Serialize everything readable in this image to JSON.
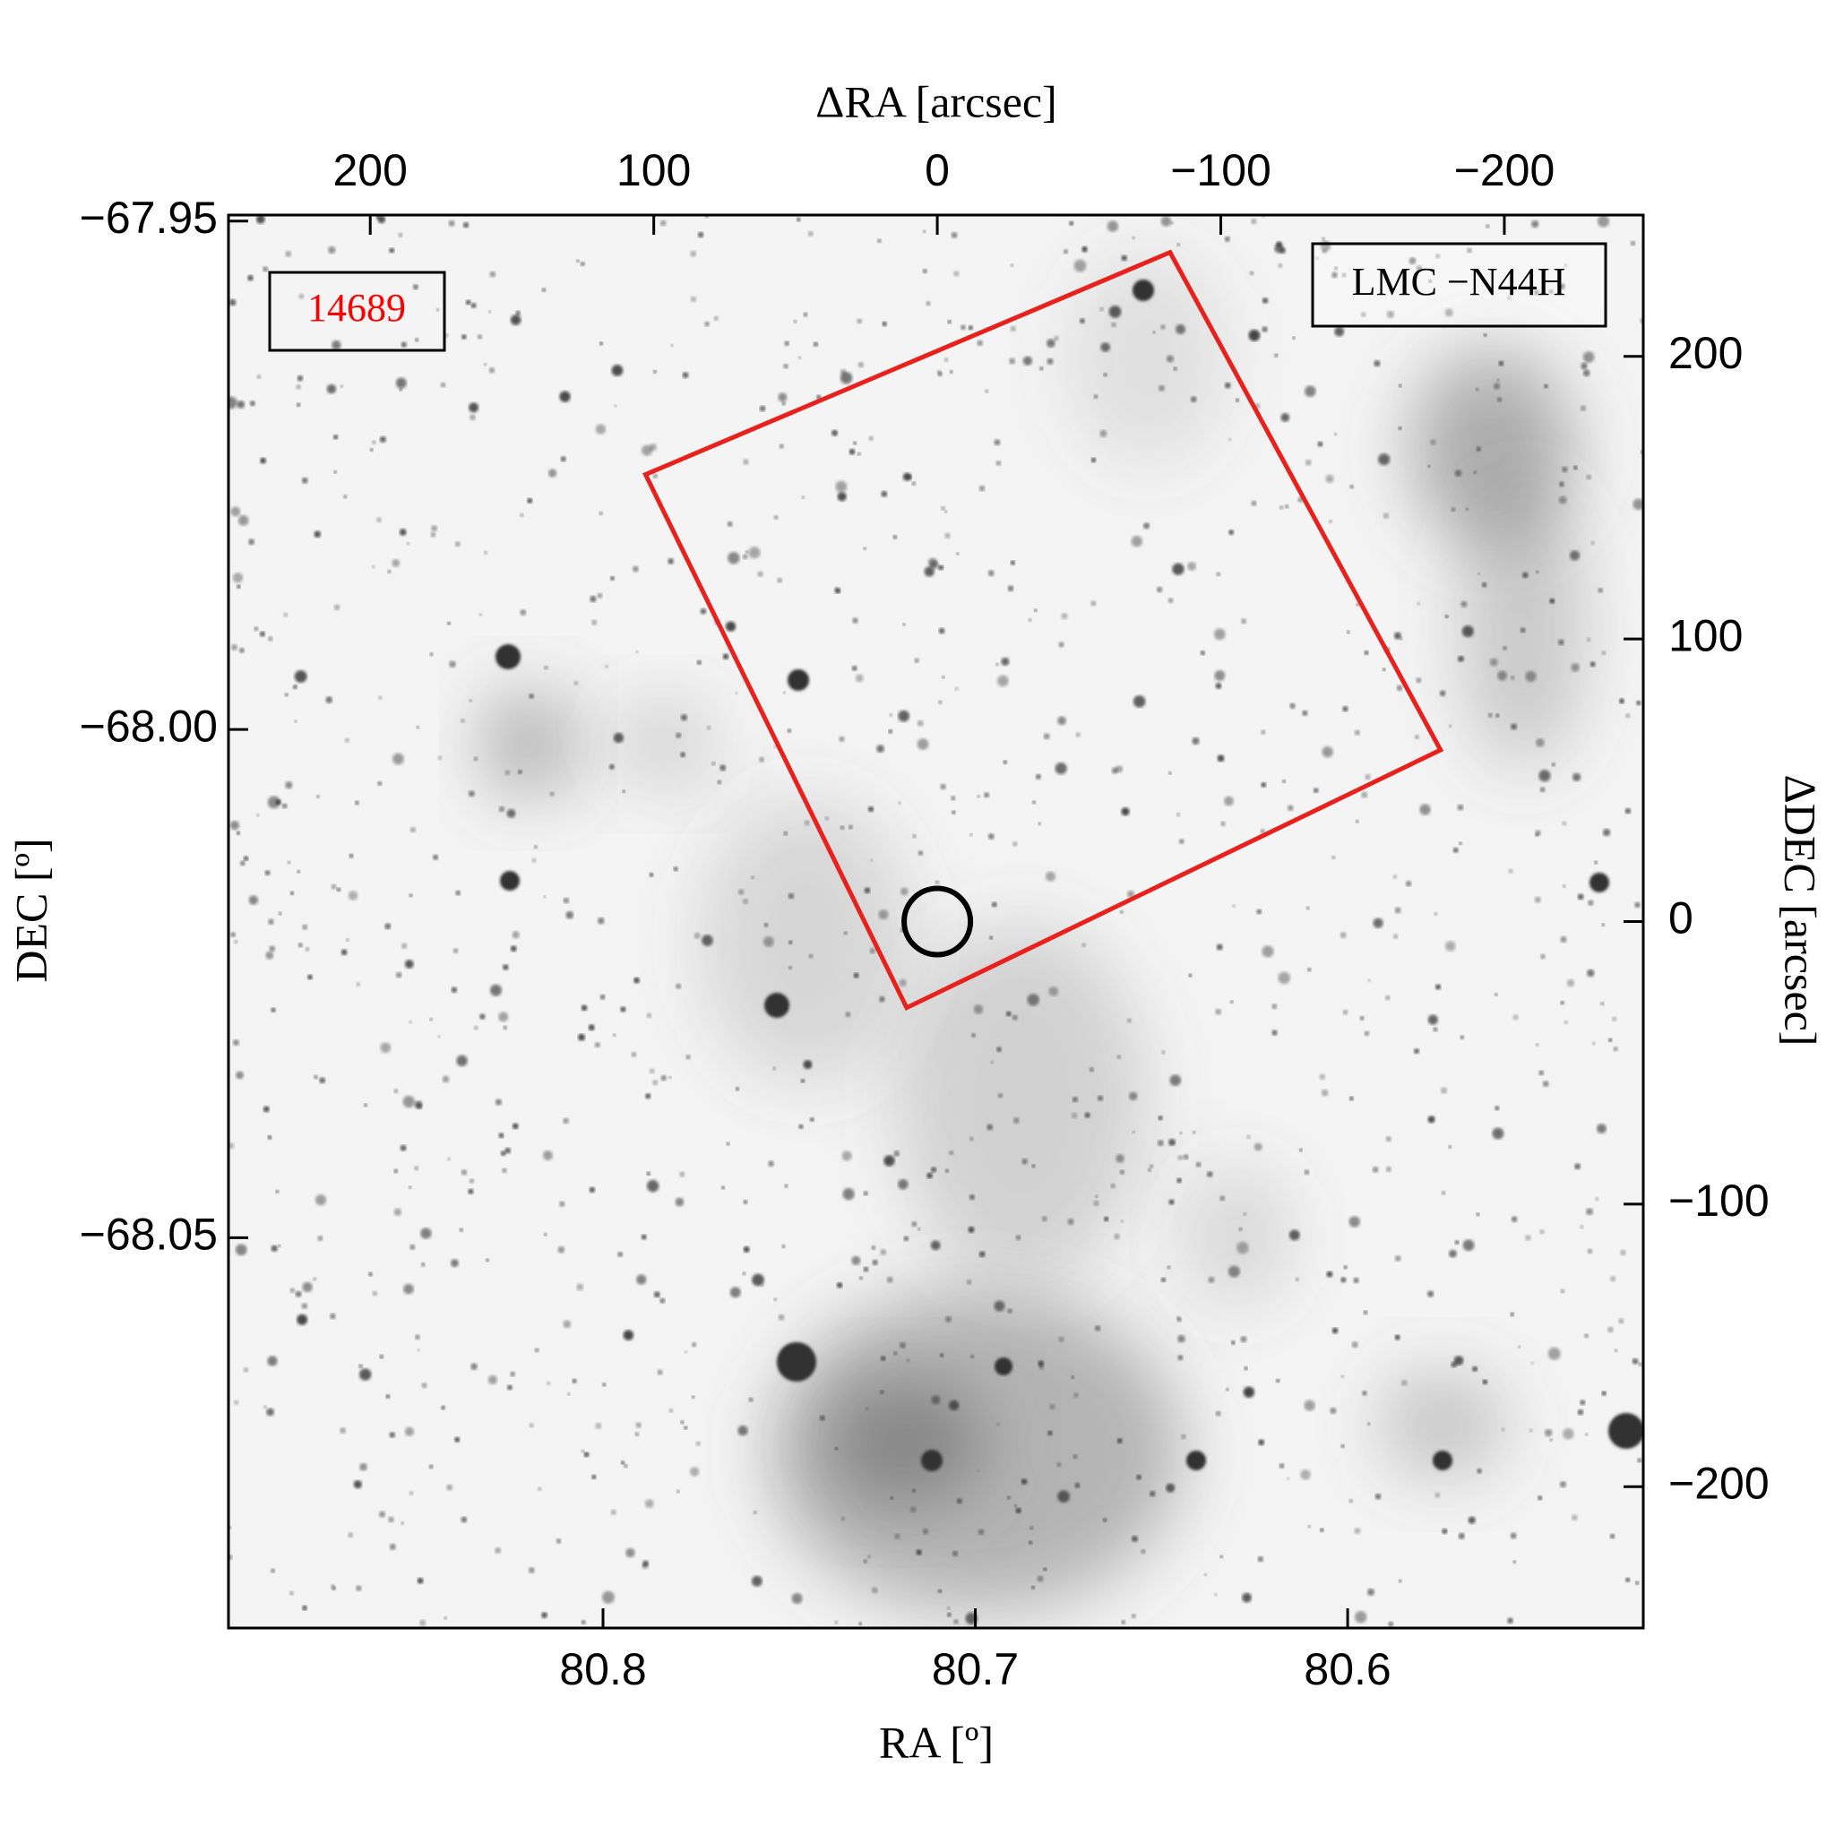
{
  "chart_data": {
    "type": "image",
    "xlabel": "RA [º]",
    "ylabel": "DEC [º]",
    "x2label": "ΔRA [arcsec]",
    "y2label": "ΔDEC [arcsec]",
    "xlim": [
      80.9006,
      80.5206
    ],
    "xticks": [
      80.8,
      80.7,
      80.6
    ],
    "ylim": [
      -68.0884,
      -67.9494
    ],
    "yticks": [
      {
        "value": -67.95,
        "label": "−67.95"
      },
      {
        "value": -68.0,
        "label": "−68.00"
      },
      {
        "value": -68.05,
        "label": "−68.05"
      }
    ],
    "x2lim": [
      250,
      -249
    ],
    "x2ticks": [
      200,
      100,
      0,
      {
        "value": -100,
        "label": "−100"
      },
      {
        "value": -200,
        "label": "−200"
      }
    ],
    "y2lim": [
      -250,
      250
    ],
    "y2ticks": [
      200,
      100,
      0,
      {
        "value": -100,
        "label": "−100"
      },
      {
        "value": -200,
        "label": "−200"
      }
    ],
    "annotations": [
      {
        "text": "14689",
        "color": "#ff0000"
      },
      {
        "text": "LMC −N44H",
        "color": "#000000"
      }
    ],
    "footprint": {
      "x": [
        102.9,
        -82.1,
        -177.5,
        10.8
      ],
      "y": [
        158.2,
        236.8,
        60.7,
        -30.5
      ],
      "color": "#e8211c"
    },
    "target": {
      "x": 0,
      "y": 0,
      "r": 11.7,
      "color": "#000000"
    }
  }
}
